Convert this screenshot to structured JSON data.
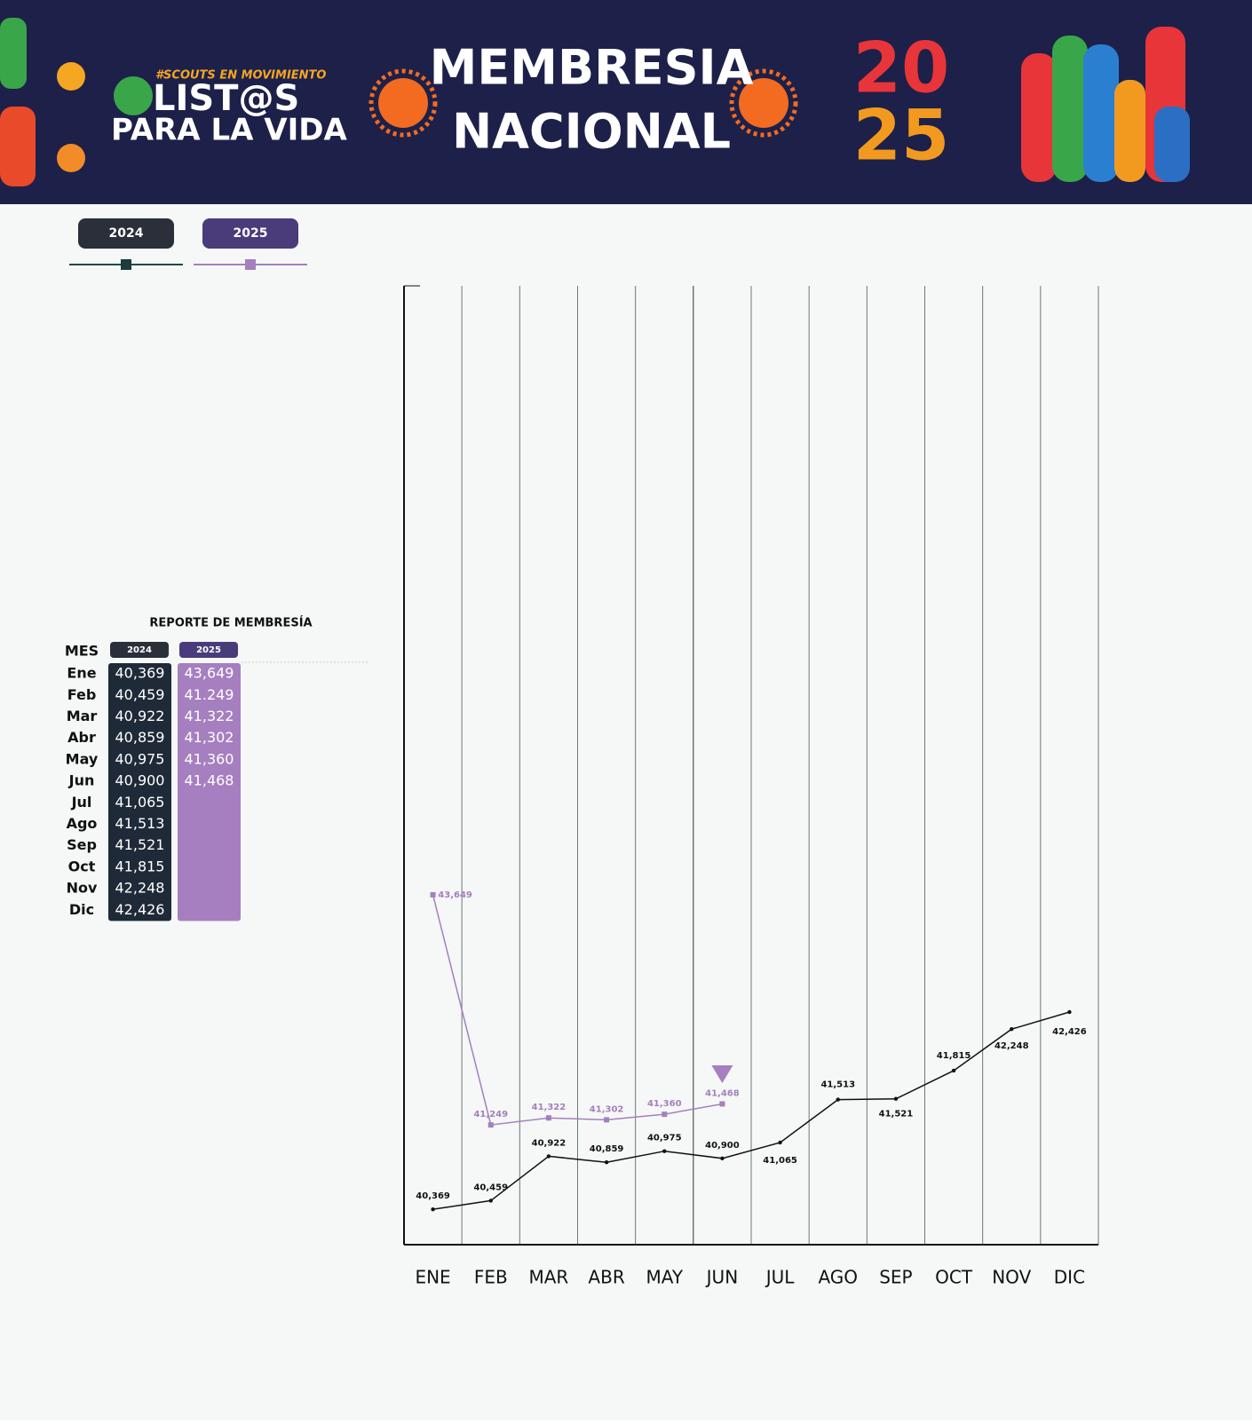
{
  "header": {
    "tagline": "#SCOUTS EN MOVIMIENTO",
    "brand_line1": "LIST@S",
    "brand_line2": "PARA LA VIDA",
    "title_line1": "MEMBRESIA",
    "title_line2": "NACIONAL",
    "year_line1": "20",
    "year_line2": "25"
  },
  "table": {
    "title": "REPORTE DE MEMBRESÍA",
    "header": "MES",
    "rows": [
      [
        "Ene",
        "40,369",
        "43,649"
      ],
      [
        "Feb",
        "40,459",
        "41.249"
      ],
      [
        "Mar",
        "40,922",
        "41,322"
      ],
      [
        "Abr",
        "40,859",
        "41,302"
      ],
      [
        "May",
        "40,975",
        "41,360"
      ],
      [
        "Jun",
        "40,900",
        "41,468"
      ],
      [
        "Jul",
        "41,065"
      ],
      [
        "Ago",
        "41,513"
      ],
      [
        "Sep",
        "41,521"
      ],
      [
        "Oct",
        "41,815"
      ],
      [
        "Nov",
        "42,248"
      ],
      [
        "Dic",
        "42,426"
      ]
    ]
  },
  "chart_data": {
    "type": "line",
    "categories": [
      "ENE",
      "FEB",
      "MAR",
      "ABR",
      "MAY",
      "JUN",
      "JUL",
      "AGO",
      "SEP",
      "OCT",
      "NOV",
      "DIC"
    ],
    "ylim": [
      40000,
      50000
    ],
    "series": [
      {
        "name": "2024",
        "color": "#111111",
        "values": [
          40369,
          40459,
          40922,
          40859,
          40975,
          40900,
          41065,
          41513,
          41521,
          41815,
          42248,
          42426
        ],
        "value_labels": [
          "40,369",
          "40,459",
          "40,922",
          "40,859",
          "40,975",
          "40,900",
          "41,065",
          "41,513",
          "41,521",
          "41,815",
          "42,248",
          "42,426"
        ]
      },
      {
        "name": "2025",
        "color": "#a57fbf",
        "values": [
          43649,
          41249,
          41322,
          41302,
          41360,
          41468,
          null,
          null,
          null,
          null,
          null,
          null
        ],
        "value_labels": [
          "43,649",
          "41,249",
          "41,322",
          "41,302",
          "41,360",
          "41,468",
          null,
          null,
          null,
          null,
          null,
          null
        ]
      }
    ]
  }
}
